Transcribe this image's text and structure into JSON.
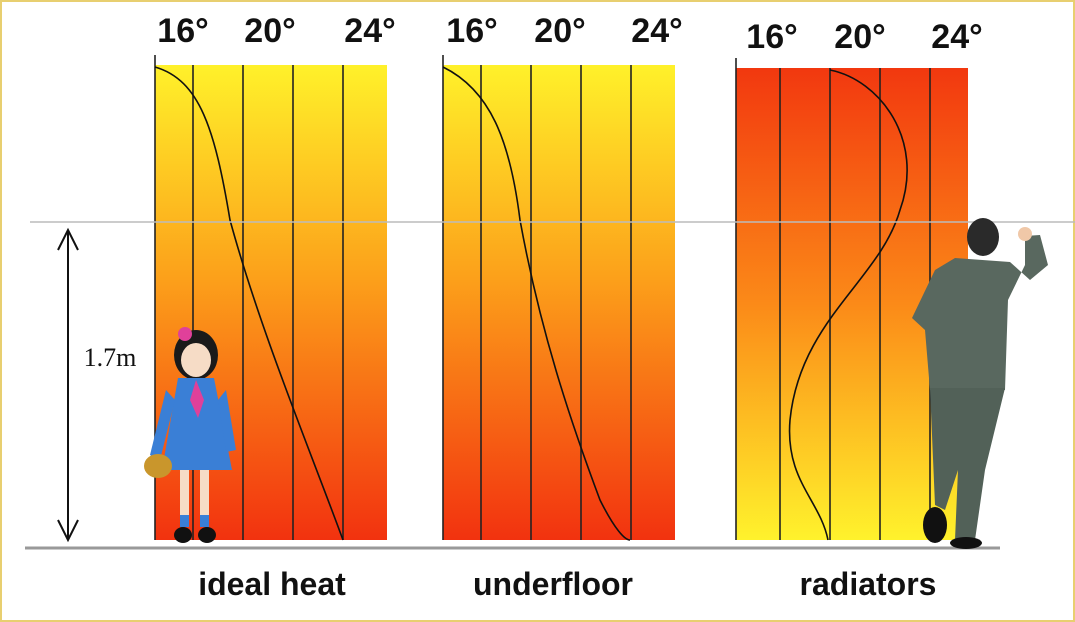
{
  "panels": [
    {
      "label": "ideal heat",
      "ticks": [
        "16°",
        "20°",
        "24°"
      ]
    },
    {
      "label": "underfloor",
      "ticks": [
        "16°",
        "20°",
        "24°"
      ]
    },
    {
      "label": "radiators",
      "ticks": [
        "16°",
        "20°",
        "24°"
      ]
    }
  ],
  "height_label": "1.7m"
}
